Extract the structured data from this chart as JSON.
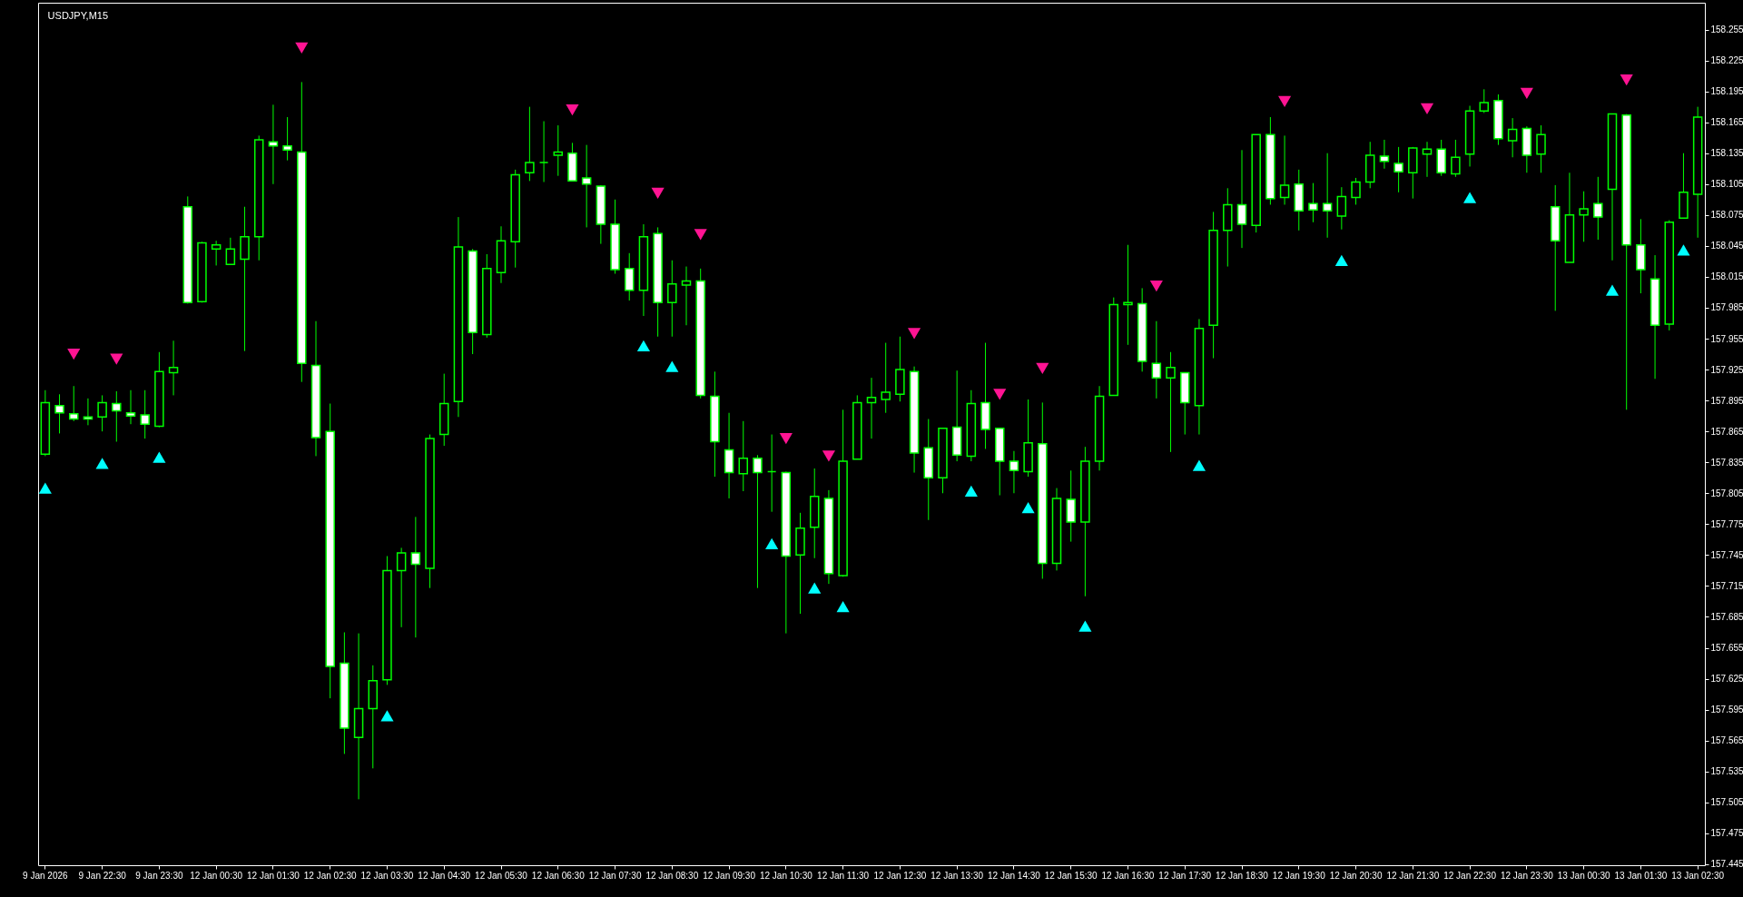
{
  "chart_data": {
    "type": "candlestick",
    "title": "USDJPY,M15",
    "color": "#00ff00",
    "categories": [
      "9 Jan 2026",
      null,
      null,
      null,
      "9 Jan 22:30",
      null,
      null,
      null,
      "9 Jan 23:30",
      null,
      null,
      null,
      "12 Jan 00:30",
      null,
      null,
      null,
      "12 Jan 01:30",
      null,
      null,
      null,
      "12 Jan 02:30",
      null,
      null,
      null,
      "12 Jan 03:30",
      null,
      null,
      null,
      "12 Jan 04:30",
      null,
      null,
      null,
      "12 Jan 05:30",
      null,
      null,
      null,
      "12 Jan 06:30",
      null,
      null,
      null,
      "12 Jan 07:30",
      null,
      null,
      null,
      "12 Jan 08:30",
      null,
      null,
      null,
      "12 Jan 09:30",
      null,
      null,
      null,
      "12 Jan 10:30",
      null,
      null,
      null,
      "12 Jan 11:30",
      null,
      null,
      null,
      "12 Jan 12:30",
      null,
      null,
      null,
      "12 Jan 13:30",
      null,
      null,
      null,
      "12 Jan 14:30",
      null,
      null,
      null,
      "12 Jan 15:30",
      null,
      null,
      null,
      "12 Jan 16:30",
      null,
      null,
      null,
      "12 Jan 17:30",
      null,
      null,
      null,
      "12 Jan 18:30",
      null,
      null,
      null,
      "12 Jan 19:30",
      null,
      null,
      null,
      "12 Jan 20:30",
      null,
      null,
      null,
      "12 Jan 21:30",
      null,
      null,
      null,
      "12 Jan 22:30",
      null,
      null,
      null,
      "12 Jan 23:30",
      null,
      null,
      null,
      "13 Jan 00:30",
      null,
      null,
      null,
      "13 Jan 01:30",
      null,
      null,
      null,
      "13 Jan 02:30"
    ],
    "ohlc": [
      [
        157.843,
        157.905,
        157.841,
        157.893
      ],
      [
        157.89,
        157.901,
        157.863,
        157.883
      ],
      [
        157.882,
        157.909,
        157.875,
        157.877
      ],
      [
        157.879,
        157.897,
        157.871,
        157.877
      ],
      [
        157.879,
        157.9,
        157.865,
        157.893
      ],
      [
        157.892,
        157.904,
        157.855,
        157.885
      ],
      [
        157.883,
        157.905,
        157.872,
        157.88
      ],
      [
        157.881,
        157.905,
        157.858,
        157.872
      ],
      [
        157.87,
        157.942,
        157.869,
        157.923
      ],
      [
        157.922,
        157.953,
        157.9,
        157.927
      ],
      [
        158.083,
        158.093,
        157.989,
        157.99
      ],
      [
        157.991,
        158.049,
        157.99,
        158.048
      ],
      [
        158.042,
        158.05,
        158.026,
        158.046
      ],
      [
        158.027,
        158.053,
        158.027,
        158.042
      ],
      [
        158.032,
        158.083,
        157.943,
        158.054
      ],
      [
        158.054,
        158.152,
        158.031,
        158.148
      ],
      [
        158.146,
        158.182,
        158.105,
        158.142
      ],
      [
        158.142,
        158.17,
        158.128,
        158.138
      ],
      [
        158.136,
        158.204,
        157.913,
        157.931
      ],
      [
        157.929,
        157.972,
        157.841,
        157.859
      ],
      [
        157.865,
        157.892,
        157.606,
        157.637
      ],
      [
        157.64,
        157.67,
        157.552,
        157.577
      ],
      [
        157.568,
        157.669,
        157.508,
        157.596
      ],
      [
        157.596,
        157.638,
        157.538,
        157.623
      ],
      [
        157.624,
        157.744,
        157.619,
        157.73
      ],
      [
        157.73,
        157.752,
        157.675,
        157.747
      ],
      [
        157.747,
        157.782,
        157.665,
        157.736
      ],
      [
        157.732,
        157.862,
        157.713,
        157.858
      ],
      [
        157.862,
        157.921,
        157.851,
        157.892
      ],
      [
        157.894,
        158.073,
        157.879,
        158.044
      ],
      [
        158.04,
        158.042,
        157.94,
        157.961
      ],
      [
        157.959,
        158.037,
        157.956,
        158.023
      ],
      [
        158.019,
        158.064,
        158.009,
        158.05
      ],
      [
        158.049,
        158.119,
        158.024,
        158.114
      ],
      [
        158.116,
        158.18,
        158.108,
        158.126
      ],
      [
        158.126,
        158.166,
        158.107,
        158.126
      ],
      [
        158.133,
        158.162,
        158.113,
        158.136
      ],
      [
        158.135,
        158.145,
        158.108,
        158.108
      ],
      [
        158.111,
        158.143,
        158.063,
        158.105
      ],
      [
        158.103,
        158.104,
        158.047,
        158.066
      ],
      [
        158.066,
        158.09,
        158.018,
        158.022
      ],
      [
        158.023,
        158.038,
        157.992,
        158.002
      ],
      [
        158.002,
        158.066,
        157.977,
        158.054
      ],
      [
        158.057,
        158.063,
        157.957,
        157.99
      ],
      [
        157.99,
        158.031,
        157.957,
        158.008
      ],
      [
        158.007,
        158.025,
        157.968,
        158.011
      ],
      [
        158.011,
        158.023,
        157.897,
        157.9
      ],
      [
        157.899,
        157.923,
        157.821,
        157.855
      ],
      [
        157.847,
        157.883,
        157.8,
        157.825
      ],
      [
        157.824,
        157.875,
        157.807,
        157.839
      ],
      [
        157.839,
        157.842,
        157.713,
        157.825
      ],
      [
        157.826,
        157.862,
        157.787,
        157.826
      ],
      [
        157.825,
        157.826,
        157.669,
        157.744
      ],
      [
        157.745,
        157.786,
        157.688,
        157.771
      ],
      [
        157.772,
        157.829,
        157.742,
        157.802
      ],
      [
        157.8,
        157.808,
        157.717,
        157.727
      ],
      [
        157.725,
        157.886,
        157.724,
        157.836
      ],
      [
        157.838,
        157.9,
        157.838,
        157.893
      ],
      [
        157.893,
        157.917,
        157.858,
        157.898
      ],
      [
        157.896,
        157.951,
        157.883,
        157.903
      ],
      [
        157.901,
        157.957,
        157.894,
        157.925
      ],
      [
        157.923,
        157.928,
        157.825,
        157.844
      ],
      [
        157.849,
        157.877,
        157.779,
        157.82
      ],
      [
        157.82,
        157.868,
        157.805,
        157.868
      ],
      [
        157.869,
        157.924,
        157.836,
        157.842
      ],
      [
        157.841,
        157.905,
        157.836,
        157.892
      ],
      [
        157.893,
        157.951,
        157.848,
        157.867
      ],
      [
        157.868,
        157.868,
        157.803,
        157.836
      ],
      [
        157.836,
        157.846,
        157.805,
        157.827
      ],
      [
        157.826,
        157.896,
        157.821,
        157.854
      ],
      [
        157.853,
        157.893,
        157.722,
        157.737
      ],
      [
        157.737,
        157.81,
        157.73,
        157.8
      ],
      [
        157.799,
        157.827,
        157.758,
        157.777
      ],
      [
        157.777,
        157.85,
        157.705,
        157.836
      ],
      [
        157.836,
        157.909,
        157.827,
        157.899
      ],
      [
        157.9,
        157.995,
        157.9,
        157.988
      ],
      [
        157.988,
        158.046,
        157.949,
        157.99
      ],
      [
        157.989,
        158.004,
        157.923,
        157.933
      ],
      [
        157.931,
        157.972,
        157.897,
        157.917
      ],
      [
        157.917,
        157.942,
        157.845,
        157.927
      ],
      [
        157.922,
        157.922,
        157.862,
        157.893
      ],
      [
        157.89,
        157.974,
        157.862,
        157.965
      ],
      [
        157.968,
        158.078,
        157.936,
        158.06
      ],
      [
        158.06,
        158.101,
        158.025,
        158.085
      ],
      [
        158.085,
        158.138,
        158.043,
        158.066
      ],
      [
        158.065,
        158.153,
        158.058,
        158.153
      ],
      [
        158.153,
        158.17,
        158.085,
        158.091
      ],
      [
        158.092,
        158.152,
        158.085,
        158.104
      ],
      [
        158.105,
        158.119,
        158.06,
        158.079
      ],
      [
        158.086,
        158.106,
        158.068,
        158.08
      ],
      [
        158.086,
        158.135,
        158.053,
        158.079
      ],
      [
        158.074,
        158.102,
        158.061,
        158.093
      ],
      [
        158.092,
        158.111,
        158.085,
        158.107
      ],
      [
        158.107,
        158.146,
        158.101,
        158.133
      ],
      [
        158.132,
        158.148,
        158.12,
        158.127
      ],
      [
        158.125,
        158.141,
        158.097,
        158.117
      ],
      [
        158.116,
        158.141,
        158.091,
        158.14
      ],
      [
        158.134,
        158.146,
        158.112,
        158.139
      ],
      [
        158.139,
        158.148,
        158.113,
        158.116
      ],
      [
        158.115,
        158.148,
        158.112,
        158.131
      ],
      [
        158.134,
        158.181,
        158.122,
        158.176
      ],
      [
        158.176,
        158.197,
        158.174,
        158.184
      ],
      [
        158.186,
        158.192,
        158.143,
        158.149
      ],
      [
        158.147,
        158.169,
        158.131,
        158.158
      ],
      [
        158.159,
        158.161,
        158.116,
        158.133
      ],
      [
        158.134,
        158.162,
        158.116,
        158.153
      ],
      [
        158.083,
        158.104,
        157.982,
        158.05
      ],
      [
        158.029,
        158.116,
        158.029,
        158.075
      ],
      [
        158.075,
        158.098,
        158.049,
        158.081
      ],
      [
        158.086,
        158.112,
        158.051,
        158.073
      ],
      [
        158.1,
        158.173,
        158.031,
        158.173
      ],
      [
        158.172,
        158.173,
        157.886,
        158.046
      ],
      [
        158.046,
        158.071,
        157.999,
        158.022
      ],
      [
        158.013,
        158.036,
        157.916,
        157.968
      ],
      [
        157.969,
        158.07,
        157.963,
        158.068
      ],
      [
        158.072,
        158.135,
        158.072,
        158.097
      ],
      [
        158.095,
        158.18,
        158.053,
        158.17
      ]
    ],
    "series": [
      {
        "type": "scatter",
        "color": "#00ffff",
        "marker": "triangle",
        "values": [
          157.81,
          null,
          null,
          null,
          157.834,
          null,
          null,
          null,
          157.84,
          null,
          null,
          null,
          null,
          null,
          null,
          null,
          null,
          null,
          null,
          null,
          null,
          null,
          null,
          null,
          157.589,
          null,
          null,
          null,
          null,
          null,
          null,
          null,
          null,
          null,
          null,
          null,
          null,
          null,
          null,
          null,
          null,
          null,
          157.948,
          null,
          157.928,
          null,
          null,
          null,
          null,
          null,
          null,
          157.756,
          null,
          null,
          157.713,
          null,
          157.695,
          null,
          null,
          null,
          null,
          null,
          null,
          null,
          null,
          157.807,
          null,
          null,
          null,
          157.791,
          null,
          null,
          null,
          157.676,
          null,
          null,
          null,
          null,
          null,
          null,
          null,
          157.832,
          null,
          null,
          null,
          null,
          null,
          null,
          null,
          null,
          null,
          158.031,
          null,
          null,
          null,
          null,
          null,
          null,
          null,
          null,
          158.092,
          null,
          null,
          null,
          null,
          null,
          null,
          null,
          null,
          null,
          158.002,
          null,
          null,
          null,
          null,
          158.041,
          null
        ]
      },
      {
        "type": "scatter",
        "color": "#ff1493",
        "marker": "triangle",
        "values": [
          null,
          null,
          157.94,
          null,
          null,
          157.935,
          null,
          null,
          null,
          null,
          null,
          null,
          null,
          null,
          null,
          null,
          null,
          null,
          158.237,
          null,
          null,
          null,
          null,
          null,
          null,
          null,
          null,
          null,
          null,
          null,
          null,
          null,
          null,
          null,
          null,
          null,
          null,
          158.177,
          null,
          null,
          null,
          null,
          null,
          158.096,
          null,
          null,
          158.056,
          null,
          null,
          null,
          null,
          null,
          157.858,
          null,
          null,
          157.841,
          null,
          null,
          null,
          null,
          null,
          157.96,
          null,
          null,
          null,
          null,
          null,
          157.901,
          null,
          null,
          157.926,
          null,
          null,
          null,
          null,
          null,
          null,
          null,
          158.006,
          null,
          null,
          null,
          null,
          null,
          null,
          null,
          null,
          158.185,
          null,
          null,
          null,
          null,
          null,
          null,
          null,
          null,
          null,
          158.178,
          null,
          null,
          null,
          null,
          null,
          null,
          158.193,
          null,
          null,
          null,
          null,
          null,
          null,
          158.206,
          null,
          null,
          null,
          null,
          null
        ]
      }
    ],
    "ylim": [
      157.444,
      158.281
    ],
    "yticks": [
      157.445,
      157.475,
      157.505,
      157.535,
      157.565,
      157.595,
      157.625,
      157.655,
      157.685,
      157.715,
      157.745,
      157.775,
      157.805,
      157.835,
      157.865,
      157.895,
      157.925,
      157.955,
      157.985,
      158.015,
      158.045,
      158.075,
      158.105,
      158.135,
      158.165,
      158.195,
      158.225,
      158.255
    ]
  }
}
